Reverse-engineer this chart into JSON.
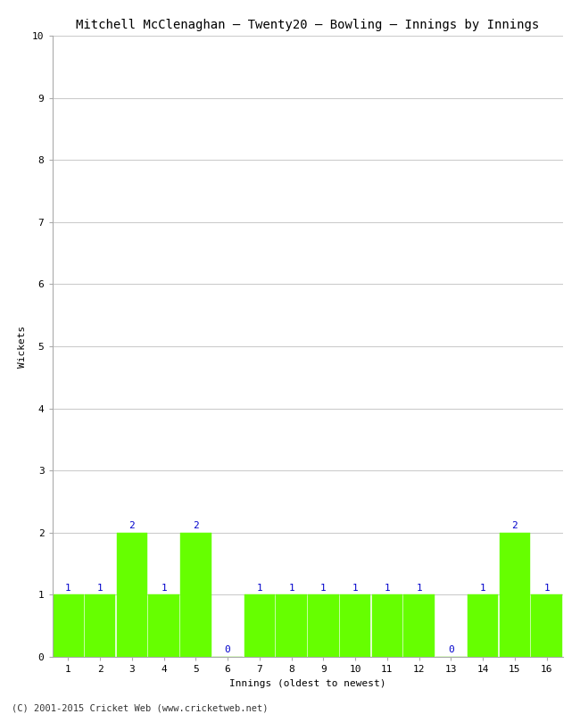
{
  "title": "Mitchell McClenaghan – Twenty20 – Bowling – Innings by Innings",
  "xlabel": "Innings (oldest to newest)",
  "ylabel": "Wickets",
  "innings": [
    1,
    2,
    3,
    4,
    5,
    6,
    7,
    8,
    9,
    10,
    11,
    12,
    13,
    14,
    15,
    16
  ],
  "wickets": [
    1,
    1,
    2,
    1,
    2,
    0,
    1,
    1,
    1,
    1,
    1,
    1,
    0,
    1,
    2,
    1
  ],
  "bar_color": "#66ff00",
  "bar_edge_color": "#66ff00",
  "label_color": "#0000cc",
  "ylim": [
    0,
    10
  ],
  "yticks": [
    0,
    1,
    2,
    3,
    4,
    5,
    6,
    7,
    8,
    9,
    10
  ],
  "background_color": "#ffffff",
  "grid_color": "#cccccc",
  "title_fontsize": 10,
  "axis_label_fontsize": 8,
  "tick_label_fontsize": 8,
  "bar_label_fontsize": 8,
  "footer": "(C) 2001-2015 Cricket Web (www.cricketweb.net)"
}
